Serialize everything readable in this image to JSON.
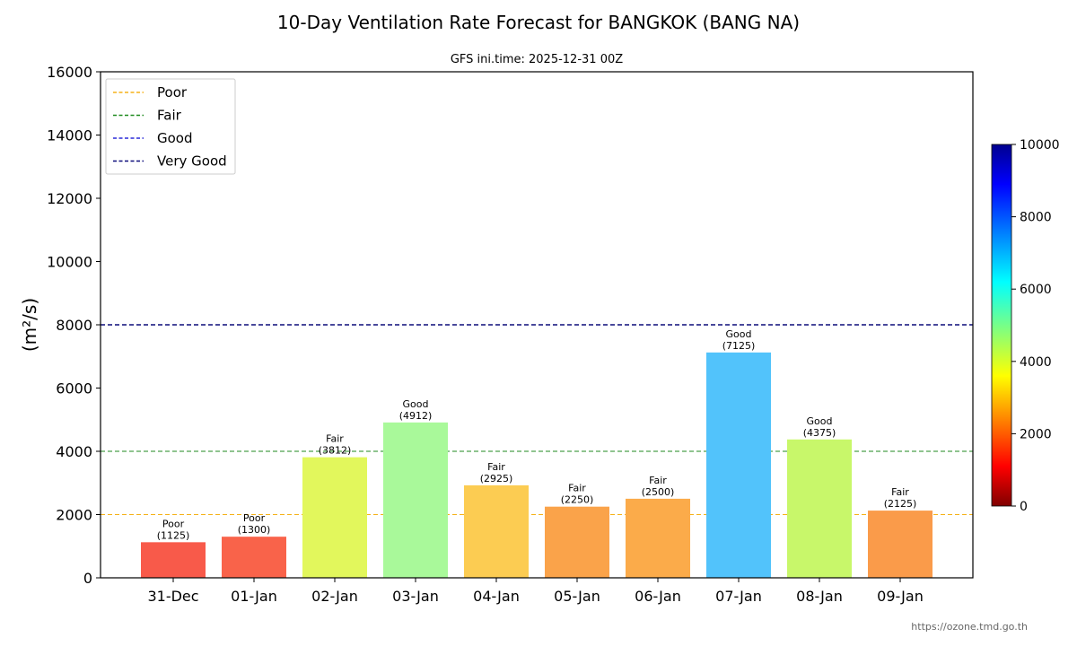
{
  "chart_data": {
    "type": "bar",
    "title": "10-Day Ventilation Rate Forecast for BANGKOK (BANG NA)",
    "subtitle": "GFS ini.time: 2025-12-31 00Z",
    "ylabel": "(m²/s)",
    "xlabel": "",
    "ylim": [
      0,
      16000
    ],
    "yticks": [
      "0",
      "2000",
      "4000",
      "6000",
      "8000",
      "10000",
      "12000",
      "14000",
      "16000"
    ],
    "categories": [
      "31-Dec",
      "01-Jan",
      "02-Jan",
      "03-Jan",
      "04-Jan",
      "05-Jan",
      "06-Jan",
      "07-Jan",
      "08-Jan",
      "09-Jan"
    ],
    "values": [
      1125,
      1300,
      3812,
      4912,
      2925,
      2250,
      2500,
      7125,
      4375,
      2125
    ],
    "value_labels": [
      "(1125)",
      "(1300)",
      "(3812)",
      "(4912)",
      "(2925)",
      "(2250)",
      "(2500)",
      "(7125)",
      "(4375)",
      "(2125)"
    ],
    "quality_labels": [
      "Poor",
      "Poor",
      "Fair",
      "Good",
      "Fair",
      "Fair",
      "Fair",
      "Good",
      "Good",
      "Fair"
    ],
    "bar_colors": [
      "#f85a4a",
      "#f9634a",
      "#e2f75c",
      "#a9f99a",
      "#fccc52",
      "#faa34a",
      "#fbab4a",
      "#52c3fb",
      "#c8f76a",
      "#fa9b4a"
    ],
    "thresholds": [
      {
        "name": "Poor",
        "value": 2000,
        "color": "#f5b21a"
      },
      {
        "name": "Fair",
        "value": 4000,
        "color": "#1f8a1f"
      },
      {
        "name": "Good",
        "value": 8000,
        "color": "#2a2ad8"
      },
      {
        "name": "Very Good",
        "value": 8000,
        "color": "#0d0d7a"
      }
    ],
    "legend_position": "top-left",
    "colorbar": {
      "range": [
        0,
        10000
      ],
      "ticks": [
        "0",
        "2000",
        "4000",
        "6000",
        "8000",
        "10000"
      ],
      "colormap": "jet"
    },
    "credit": "https://ozone.tmd.go.th"
  }
}
